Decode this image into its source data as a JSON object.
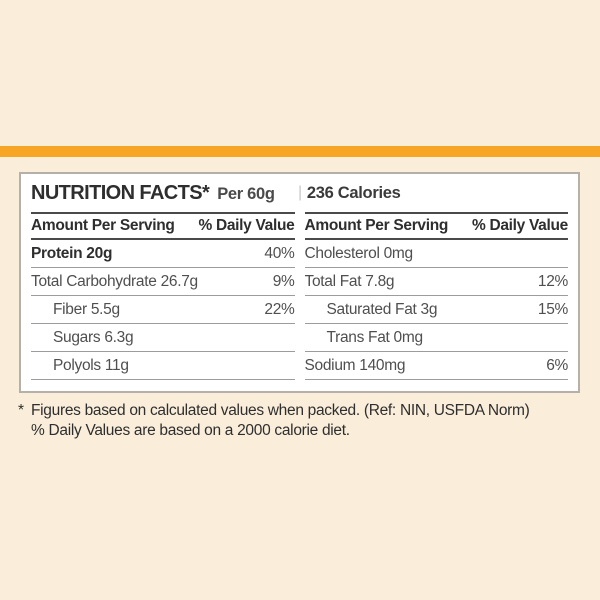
{
  "theme": {
    "background": "#FAEEDB",
    "accent_bar": "#F7A525",
    "panel_background": "#FFFFFF",
    "panel_border": "#B5B1AA",
    "rule_dark": "#4A4A4A",
    "rule_light": "#9C9C9C",
    "text_dark": "#2E2E2E",
    "text_regular": "#4F4F4F"
  },
  "label": {
    "title": "NUTRITION FACTS*",
    "serving": "Per 60g",
    "divider": "|",
    "calories": "236 Calories",
    "left": {
      "header_amount": "Amount Per Serving",
      "header_dv": "% Daily Value",
      "rows": [
        {
          "name": "Protein 20g",
          "value": "40%"
        },
        {
          "name": "Total Carbohydrate 26.7g",
          "value": "9%"
        },
        {
          "name": "Fiber 5.5g",
          "value": "22%"
        },
        {
          "name": "Sugars 6.3g",
          "value": ""
        },
        {
          "name": "Polyols 11g",
          "value": ""
        }
      ]
    },
    "right": {
      "header_amount": "Amount Per Serving",
      "header_dv": "% Daily Value",
      "rows": [
        {
          "name": "Cholesterol 0mg",
          "value": ""
        },
        {
          "name": "Total Fat 7.8g",
          "value": "12%"
        },
        {
          "name": "Saturated Fat 3g",
          "value": "15%"
        },
        {
          "name": "Trans Fat 0mg",
          "value": ""
        },
        {
          "name": "Sodium 140mg",
          "value": "6%"
        }
      ]
    },
    "footnotes": [
      {
        "marker": "*",
        "text": "Figures based on calculated values when packed. (Ref: NIN, USFDA Norm)"
      },
      {
        "marker": "",
        "text": "% Daily Values are based on a 2000 calorie diet."
      }
    ]
  }
}
